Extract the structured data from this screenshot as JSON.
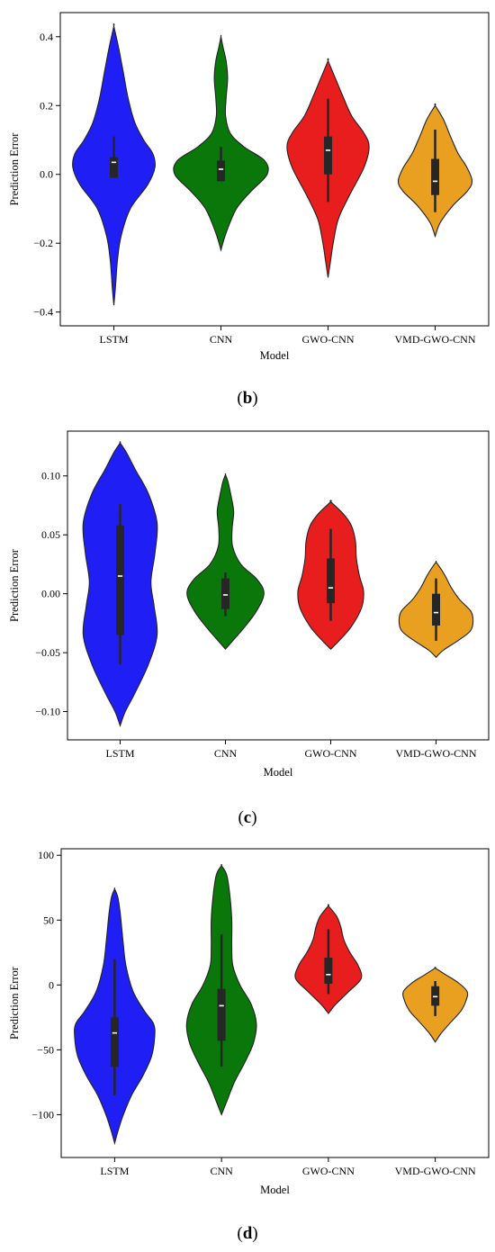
{
  "colors": {
    "LSTM": "#1f1ff5",
    "CNN": "#0a770a",
    "GWO-CNN": "#e81e1e",
    "VMD-GWO-CNN": "#e9a021",
    "edge": "#222222",
    "box": "#262626",
    "median": "#ffffff"
  },
  "chart_data": [
    {
      "panel": "b",
      "caption_open": "(",
      "caption_letter": "b",
      "caption_close": ")",
      "type": "violin",
      "xlabel": "Model",
      "ylabel": "Prediction Error",
      "categories": [
        "LSTM",
        "CNN",
        "GWO-CNN",
        "VMD-GWO-CNN"
      ],
      "ylim": [
        -0.44,
        0.47
      ],
      "yticks": [
        -0.4,
        -0.2,
        0.0,
        0.2,
        0.4
      ],
      "ytick_labels": [
        "−0.4",
        "−0.2",
        "0.0",
        "0.2",
        "0.4"
      ],
      "grid": false,
      "violins": [
        {
          "name": "LSTM",
          "min": -0.38,
          "max": 0.43,
          "profile": [
            [
              -0.38,
              0.0
            ],
            [
              -0.33,
              0.03
            ],
            [
              -0.25,
              0.07
            ],
            [
              -0.18,
              0.14
            ],
            [
              -0.1,
              0.32
            ],
            [
              -0.03,
              0.66
            ],
            [
              0.02,
              0.8
            ],
            [
              0.06,
              0.76
            ],
            [
              0.1,
              0.58
            ],
            [
              0.15,
              0.41
            ],
            [
              0.22,
              0.28
            ],
            [
              0.3,
              0.18
            ],
            [
              0.37,
              0.09
            ],
            [
              0.43,
              0.0
            ]
          ],
          "q1": -0.01,
          "median": 0.035,
          "q3": 0.05,
          "whisker_low": -0.01,
          "whisker_high": 0.11
        },
        {
          "name": "CNN",
          "min": -0.22,
          "max": 0.4,
          "profile": [
            [
              -0.22,
              0.0
            ],
            [
              -0.17,
              0.1
            ],
            [
              -0.1,
              0.3
            ],
            [
              -0.05,
              0.58
            ],
            [
              0.0,
              0.9
            ],
            [
              0.04,
              0.85
            ],
            [
              0.08,
              0.45
            ],
            [
              0.12,
              0.18
            ],
            [
              0.17,
              0.09
            ],
            [
              0.22,
              0.1
            ],
            [
              0.28,
              0.13
            ],
            [
              0.33,
              0.1
            ],
            [
              0.37,
              0.04
            ],
            [
              0.4,
              0.0
            ]
          ],
          "q1": -0.02,
          "median": 0.015,
          "q3": 0.04,
          "whisker_low": -0.02,
          "whisker_high": 0.08
        },
        {
          "name": "GWO-CNN",
          "min": -0.3,
          "max": 0.33,
          "profile": [
            [
              -0.3,
              0.0
            ],
            [
              -0.25,
              0.05
            ],
            [
              -0.2,
              0.1
            ],
            [
              -0.13,
              0.2
            ],
            [
              -0.06,
              0.42
            ],
            [
              0.02,
              0.7
            ],
            [
              0.08,
              0.8
            ],
            [
              0.12,
              0.7
            ],
            [
              0.17,
              0.46
            ],
            [
              0.23,
              0.28
            ],
            [
              0.28,
              0.14
            ],
            [
              0.33,
              0.0
            ]
          ],
          "q1": 0.0,
          "median": 0.07,
          "q3": 0.11,
          "whisker_low": -0.08,
          "whisker_high": 0.22
        },
        {
          "name": "VMD-GWO-CNN",
          "min": -0.18,
          "max": 0.2,
          "profile": [
            [
              -0.18,
              0.0
            ],
            [
              -0.14,
              0.1
            ],
            [
              -0.09,
              0.35
            ],
            [
              -0.05,
              0.62
            ],
            [
              -0.02,
              0.72
            ],
            [
              0.02,
              0.62
            ],
            [
              0.06,
              0.45
            ],
            [
              0.11,
              0.3
            ],
            [
              0.16,
              0.16
            ],
            [
              0.2,
              0.0
            ]
          ],
          "q1": -0.06,
          "median": -0.02,
          "q3": 0.045,
          "whisker_low": -0.11,
          "whisker_high": 0.13
        }
      ]
    },
    {
      "panel": "c",
      "caption_open": "(",
      "caption_letter": "c",
      "caption_close": ")",
      "type": "violin",
      "xlabel": "Model",
      "ylabel": "Prediction Error",
      "categories": [
        "LSTM",
        "CNN",
        "GWO-CNN",
        "VMD-GWO-CNN"
      ],
      "ylim": [
        -0.124,
        0.138
      ],
      "yticks": [
        -0.1,
        -0.05,
        0.0,
        0.05,
        0.1
      ],
      "ytick_labels": [
        "−0.10",
        "−0.05",
        "0.00",
        "0.05",
        "0.10"
      ],
      "grid": false,
      "violins": [
        {
          "name": "LSTM",
          "min": -0.112,
          "max": 0.128,
          "profile": [
            [
              -0.112,
              0.0
            ],
            [
              -0.1,
              0.1
            ],
            [
              -0.085,
              0.28
            ],
            [
              -0.06,
              0.55
            ],
            [
              -0.035,
              0.72
            ],
            [
              -0.01,
              0.66
            ],
            [
              0.01,
              0.6
            ],
            [
              0.035,
              0.68
            ],
            [
              0.06,
              0.72
            ],
            [
              0.085,
              0.55
            ],
            [
              0.105,
              0.3
            ],
            [
              0.12,
              0.12
            ],
            [
              0.128,
              0.0
            ]
          ],
          "q1": -0.035,
          "median": 0.015,
          "q3": 0.058,
          "whisker_low": -0.06,
          "whisker_high": 0.076
        },
        {
          "name": "CNN",
          "min": -0.047,
          "max": 0.101,
          "profile": [
            [
              -0.047,
              0.0
            ],
            [
              -0.04,
              0.14
            ],
            [
              -0.03,
              0.34
            ],
            [
              -0.015,
              0.6
            ],
            [
              0.0,
              0.75
            ],
            [
              0.012,
              0.62
            ],
            [
              0.025,
              0.3
            ],
            [
              0.04,
              0.14
            ],
            [
              0.055,
              0.13
            ],
            [
              0.07,
              0.16
            ],
            [
              0.085,
              0.1
            ],
            [
              0.095,
              0.05
            ],
            [
              0.101,
              0.0
            ]
          ],
          "q1": -0.013,
          "median": -0.001,
          "q3": 0.013,
          "whisker_low": -0.019,
          "whisker_high": 0.018
        },
        {
          "name": "GWO-CNN",
          "min": -0.047,
          "max": 0.078,
          "profile": [
            [
              -0.047,
              0.0
            ],
            [
              -0.04,
              0.16
            ],
            [
              -0.028,
              0.4
            ],
            [
              -0.012,
              0.6
            ],
            [
              0.002,
              0.64
            ],
            [
              0.015,
              0.56
            ],
            [
              0.03,
              0.5
            ],
            [
              0.045,
              0.48
            ],
            [
              0.058,
              0.4
            ],
            [
              0.068,
              0.24
            ],
            [
              0.078,
              0.0
            ]
          ],
          "q1": -0.008,
          "median": 0.005,
          "q3": 0.03,
          "whisker_low": -0.023,
          "whisker_high": 0.055
        },
        {
          "name": "VMD-GWO-CNN",
          "min": -0.054,
          "max": 0.027,
          "profile": [
            [
              -0.054,
              0.0
            ],
            [
              -0.048,
              0.14
            ],
            [
              -0.04,
              0.42
            ],
            [
              -0.032,
              0.66
            ],
            [
              -0.024,
              0.72
            ],
            [
              -0.015,
              0.68
            ],
            [
              -0.005,
              0.46
            ],
            [
              0.005,
              0.3
            ],
            [
              0.015,
              0.18
            ],
            [
              0.022,
              0.08
            ],
            [
              0.027,
              0.0
            ]
          ],
          "q1": -0.027,
          "median": -0.016,
          "q3": 0.0,
          "whisker_low": -0.04,
          "whisker_high": 0.013
        }
      ]
    },
    {
      "panel": "d",
      "caption_open": "(",
      "caption_letter": "d",
      "caption_close": ")",
      "type": "violin",
      "xlabel": "Model",
      "ylabel": "Prediction Error",
      "categories": [
        "LSTM",
        "CNN",
        "GWO-CNN",
        "VMD-GWO-CNN"
      ],
      "ylim": [
        -133,
        105
      ],
      "yticks": [
        -100,
        -50,
        0,
        50,
        100
      ],
      "ytick_labels": [
        "−100",
        "−50",
        "0",
        "50",
        "100"
      ],
      "grid": false,
      "violins": [
        {
          "name": "LSTM",
          "min": -122,
          "max": 74,
          "profile": [
            [
              -122,
              0.0
            ],
            [
              -112,
              0.07
            ],
            [
              -100,
              0.17
            ],
            [
              -85,
              0.33
            ],
            [
              -70,
              0.55
            ],
            [
              -55,
              0.72
            ],
            [
              -40,
              0.78
            ],
            [
              -30,
              0.76
            ],
            [
              -20,
              0.58
            ],
            [
              -5,
              0.36
            ],
            [
              15,
              0.22
            ],
            [
              35,
              0.16
            ],
            [
              55,
              0.11
            ],
            [
              68,
              0.06
            ],
            [
              74,
              0.0
            ]
          ],
          "q1": -63,
          "median": -37,
          "q3": -25,
          "whisker_low": -85,
          "whisker_high": 20
        },
        {
          "name": "CNN",
          "min": -100,
          "max": 92,
          "profile": [
            [
              -100,
              0.0
            ],
            [
              -90,
              0.1
            ],
            [
              -75,
              0.25
            ],
            [
              -60,
              0.45
            ],
            [
              -45,
              0.62
            ],
            [
              -30,
              0.68
            ],
            [
              -15,
              0.58
            ],
            [
              0,
              0.36
            ],
            [
              15,
              0.22
            ],
            [
              30,
              0.2
            ],
            [
              50,
              0.2
            ],
            [
              70,
              0.16
            ],
            [
              85,
              0.1
            ],
            [
              92,
              0.0
            ]
          ],
          "q1": -43,
          "median": -16,
          "q3": -3,
          "whisker_low": -63,
          "whisker_high": 39
        },
        {
          "name": "GWO-CNN",
          "min": -22,
          "max": 61,
          "profile": [
            [
              -22,
              0.0
            ],
            [
              -15,
              0.14
            ],
            [
              -5,
              0.4
            ],
            [
              5,
              0.64
            ],
            [
              15,
              0.58
            ],
            [
              25,
              0.42
            ],
            [
              35,
              0.3
            ],
            [
              45,
              0.24
            ],
            [
              53,
              0.16
            ],
            [
              61,
              0.0
            ]
          ],
          "q1": 1,
          "median": 8,
          "q3": 21,
          "whisker_low": -7,
          "whisker_high": 43
        },
        {
          "name": "VMD-GWO-CNN",
          "min": -44,
          "max": 13,
          "profile": [
            [
              -44,
              0.0
            ],
            [
              -37,
              0.12
            ],
            [
              -28,
              0.32
            ],
            [
              -20,
              0.5
            ],
            [
              -12,
              0.6
            ],
            [
              -5,
              0.62
            ],
            [
              2,
              0.44
            ],
            [
              8,
              0.2
            ],
            [
              13,
              0.0
            ]
          ],
          "q1": -16,
          "median": -9,
          "q3": -1,
          "whisker_low": -24,
          "whisker_high": 3
        }
      ]
    }
  ]
}
